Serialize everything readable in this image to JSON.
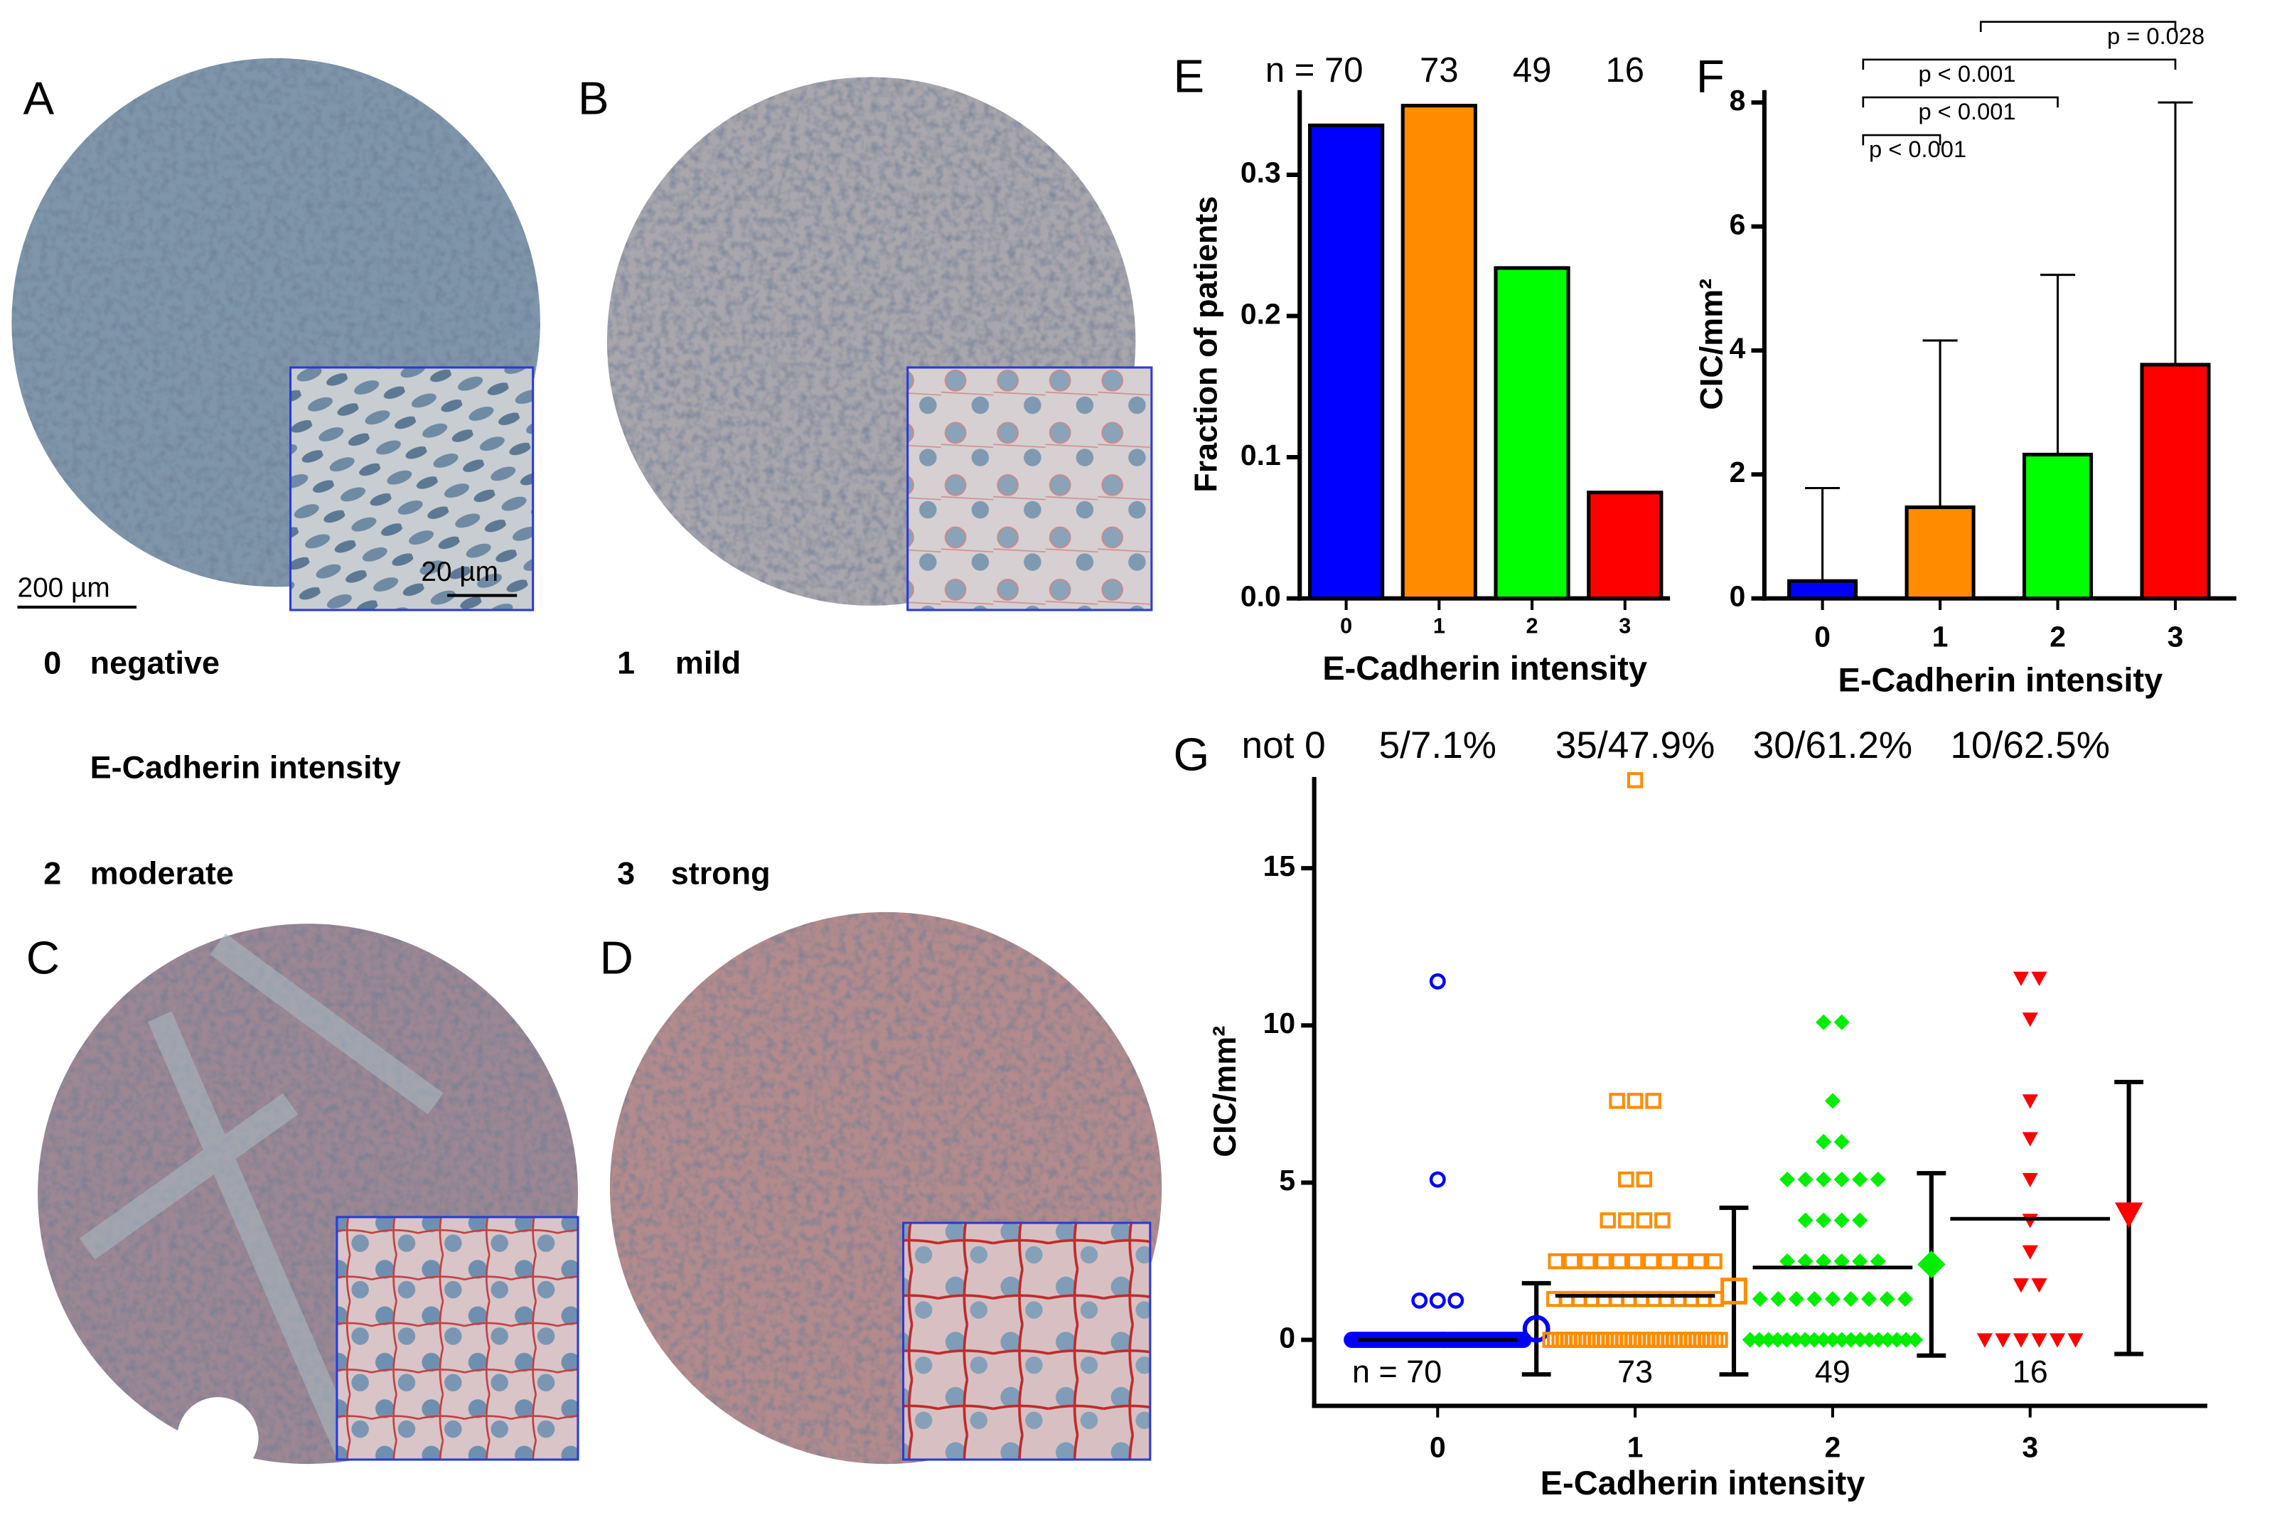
{
  "panels": [
    {
      "letter": "A"
    },
    {
      "letter": "B"
    },
    {
      "letter": "C"
    },
    {
      "letter": "D"
    }
  ],
  "scale_bars": [
    "200 µm",
    "20 µm"
  ],
  "intensity_title": "E-Cadherin intensity",
  "intensity_labels": [
    {
      "score": "0",
      "label": "negative"
    },
    {
      "score": "1",
      "label": "mild"
    },
    {
      "score": "2",
      "label": "moderate"
    },
    {
      "score": "3",
      "label": "strong"
    }
  ],
  "chart_data": [
    {
      "type": "bar",
      "letter": "E",
      "categories": [
        "0",
        "1",
        "2",
        "3"
      ],
      "values": [
        0.335,
        0.349,
        0.234,
        0.075
      ],
      "colors": [
        "#0000ff",
        "#ff8c00",
        "#00ff00",
        "#ff0000"
      ],
      "ylim": [
        0,
        0.36
      ],
      "yticks": [
        {
          "value": 0,
          "label": "0.0"
        },
        0.1,
        0.2,
        0.3
      ],
      "ylabel": "Fraction of patients",
      "xlabel": "E-Cadherin intensity",
      "annotations": [
        "n = 70",
        "73",
        "49",
        "16"
      ]
    },
    {
      "type": "bar",
      "letter": "F",
      "categories": [
        "0",
        "1",
        "2",
        "3"
      ],
      "values": [
        0.28,
        1.47,
        2.32,
        3.77
      ],
      "errors": [
        1.5,
        2.69,
        2.9,
        4.23
      ],
      "colors": [
        "#0000ff",
        "#ff8c00",
        "#00ff00",
        "#ff0000"
      ],
      "ylim": [
        0,
        8.2
      ],
      "yticks": [
        0,
        2,
        4,
        6,
        8
      ],
      "ylabel": "CIC/mm²",
      "xlabel": "E-Cadherin intensity",
      "comparisons": [
        {
          "groups": [
            0,
            1
          ],
          "label": "p < 0.001"
        },
        {
          "groups": [
            0,
            2
          ],
          "label": "p < 0.001"
        },
        {
          "groups": [
            0,
            3
          ],
          "label": "p < 0.001"
        },
        {
          "groups": [
            1,
            3
          ],
          "label": "p = 0.028"
        }
      ]
    },
    {
      "type": "scatter",
      "letter": "G",
      "categories": [
        "0",
        "1",
        "2",
        "3"
      ],
      "series": [
        {
          "color": "#0000ff",
          "marker": "circle",
          "values": [
            11.4,
            5.1,
            1.25,
            1.25,
            1.25,
            0,
            0,
            0,
            0,
            0,
            0,
            0,
            0,
            0,
            0,
            0,
            0,
            0,
            0,
            0,
            0,
            0,
            0,
            0,
            0,
            0,
            0,
            0,
            0,
            0,
            0,
            0,
            0,
            0,
            0,
            0,
            0,
            0,
            0,
            0,
            0,
            0,
            0,
            0,
            0,
            0,
            0,
            0,
            0,
            0,
            0,
            0,
            0,
            0,
            0,
            0,
            0,
            0,
            0,
            0,
            0,
            0,
            0,
            0,
            0,
            0,
            0,
            0,
            0,
            0
          ],
          "line_value": 0,
          "mean": 0.35,
          "error_low": -1.1,
          "error_high": 1.8
        },
        {
          "color": "#ff8c00",
          "marker": "square",
          "values": [
            17.8,
            7.6,
            7.6,
            7.6,
            5.1,
            5.1,
            3.8,
            3.8,
            3.8,
            3.8,
            2.5,
            2.5,
            2.5,
            2.5,
            2.5,
            2.5,
            2.5,
            2.5,
            2.5,
            2.5,
            2.5,
            1.3,
            1.3,
            1.3,
            1.3,
            1.3,
            1.3,
            1.3,
            1.3,
            1.3,
            1.3,
            1.3,
            1.3,
            1.3,
            1.3,
            0,
            0,
            0,
            0,
            0,
            0,
            0,
            0,
            0,
            0,
            0,
            0,
            0,
            0,
            0,
            0,
            0,
            0,
            0,
            0,
            0,
            0,
            0,
            0,
            0,
            0,
            0,
            0,
            0,
            0,
            0,
            0,
            0,
            0,
            0,
            0,
            0,
            0
          ],
          "line_value": 1.4,
          "mean": 1.55,
          "error_low": -1.1,
          "error_high": 4.2
        },
        {
          "color": "#00ee00",
          "marker": "diamond",
          "values": [
            10.1,
            10.1,
            7.6,
            6.3,
            6.3,
            5.1,
            5.1,
            5.1,
            5.1,
            5.1,
            5.1,
            3.8,
            3.8,
            3.8,
            3.8,
            2.5,
            2.5,
            2.5,
            2.5,
            2.5,
            2.5,
            1.3,
            1.3,
            1.3,
            1.3,
            1.3,
            1.3,
            1.3,
            1.3,
            1.3,
            0,
            0,
            0,
            0,
            0,
            0,
            0,
            0,
            0,
            0,
            0,
            0,
            0,
            0,
            0,
            0,
            0,
            0,
            0
          ],
          "line_value": 2.3,
          "mean": 2.4,
          "error_low": -0.5,
          "error_high": 5.3
        },
        {
          "color": "#ff0000",
          "marker": "triangle",
          "values": [
            11.5,
            11.5,
            10.2,
            7.6,
            6.4,
            5.1,
            3.8,
            2.8,
            1.75,
            1.75,
            0,
            0,
            0,
            0,
            0,
            0
          ],
          "line_value": 3.85,
          "mean": 4.0,
          "error_low": -0.45,
          "error_high": 8.2
        }
      ],
      "ylim": [
        -2.1,
        17.9
      ],
      "yticks": [
        0,
        5,
        10,
        15
      ],
      "ylabel": "CIC/mm²",
      "xlabel": "E-Cadherin intensity",
      "top_annotations": [
        "not 0",
        "5/7.1%",
        "35/47.9%",
        "30/61.2%",
        "10/62.5%"
      ],
      "annotations": [
        "n = 70",
        "73",
        "49",
        "16"
      ]
    }
  ]
}
